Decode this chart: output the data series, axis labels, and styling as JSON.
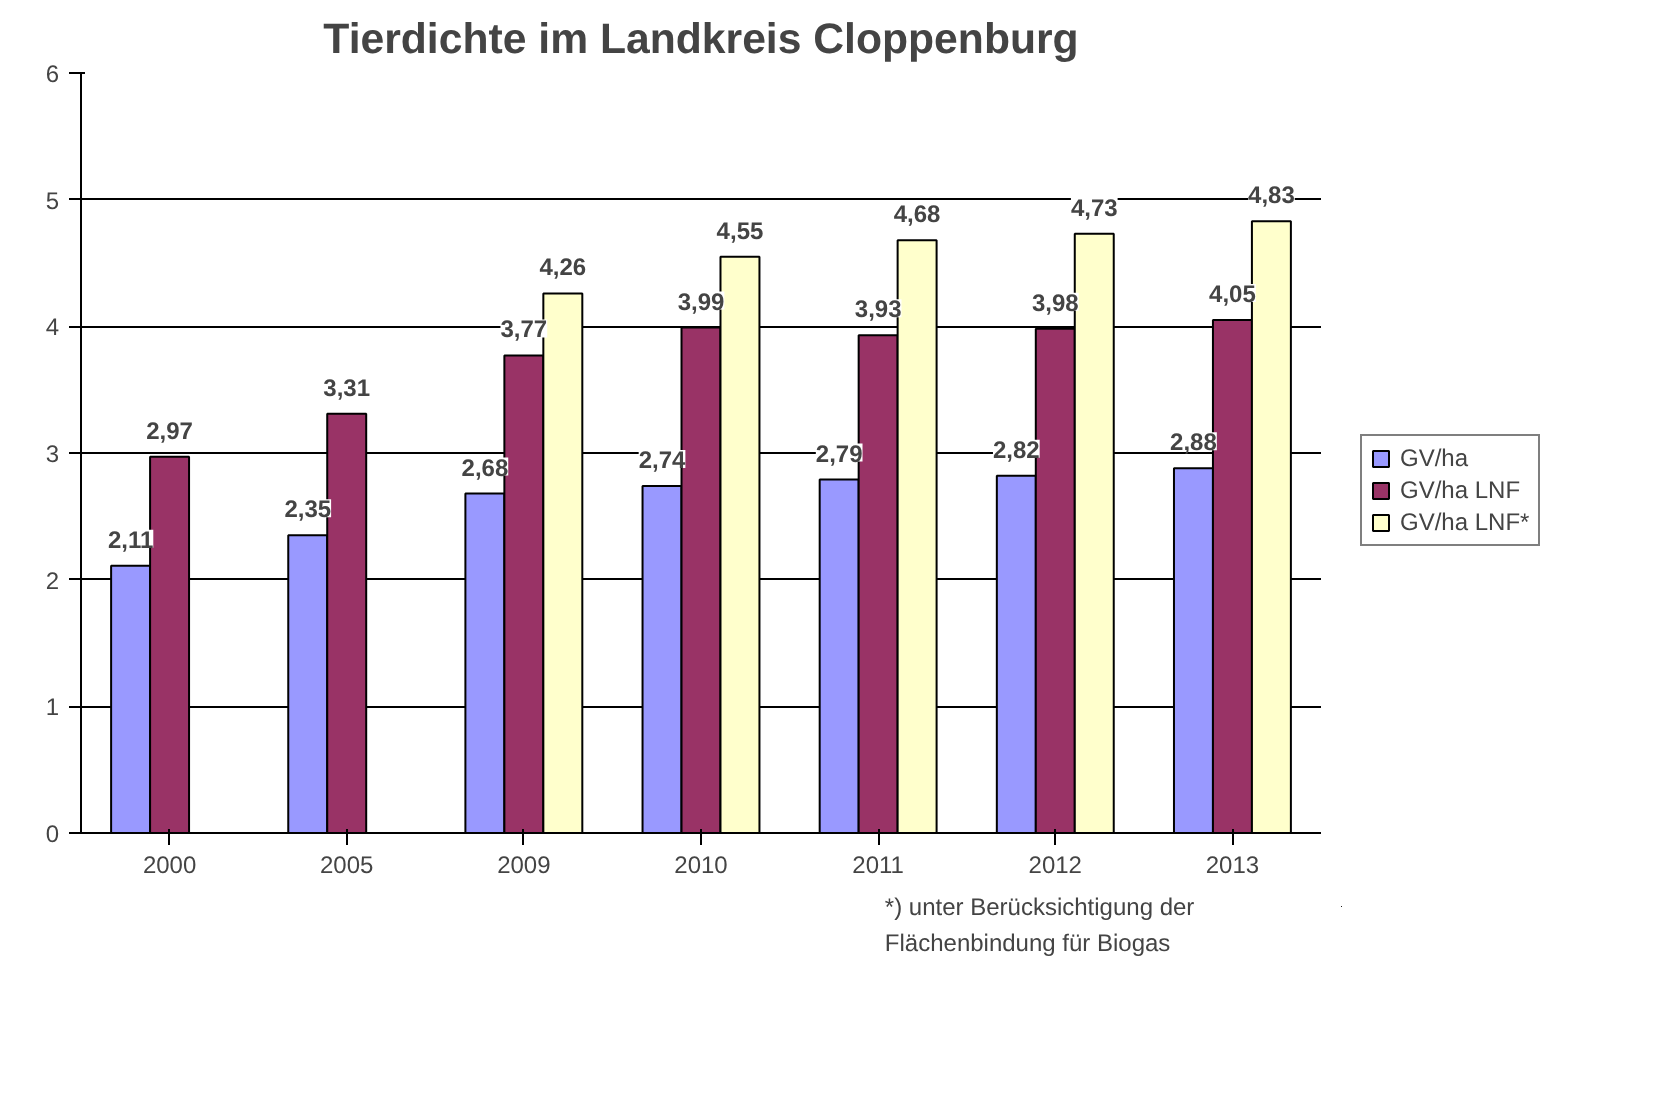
{
  "chart_data": {
    "type": "bar",
    "title": "Tierdichte im Landkreis Cloppenburg",
    "categories": [
      "2000",
      "2005",
      "2009",
      "2010",
      "2011",
      "2012",
      "2013"
    ],
    "series": [
      {
        "name": "GV/ha",
        "color": "#9999ff",
        "values": [
          2.11,
          2.35,
          2.68,
          2.74,
          2.79,
          2.82,
          2.88
        ],
        "value_labels": [
          "2,11",
          "2,35",
          "2,68",
          "2,74",
          "2,79",
          "2,82",
          "2,88"
        ]
      },
      {
        "name": "GV/ha LNF",
        "color": "#993366",
        "values": [
          2.97,
          3.31,
          3.77,
          3.99,
          3.93,
          3.98,
          4.05
        ],
        "value_labels": [
          "2,97",
          "3,31",
          "3,77",
          "3,99",
          "3,93",
          "3,98",
          "4,05"
        ]
      },
      {
        "name": "GV/ha LNF*",
        "color": "#ffffcc",
        "values": [
          null,
          null,
          4.26,
          4.55,
          4.68,
          4.73,
          4.83
        ],
        "value_labels": [
          null,
          null,
          "4,26",
          "4,55",
          "4,68",
          "4,73",
          "4,83"
        ]
      }
    ],
    "ylim": [
      0,
      6
    ],
    "yticks": [
      0,
      1,
      2,
      3,
      4,
      5,
      6
    ],
    "grid": "y",
    "legend": "right",
    "annotations": [
      "*) unter Berücksichtigung  der\nFlächenbindung für Biogas"
    ]
  }
}
